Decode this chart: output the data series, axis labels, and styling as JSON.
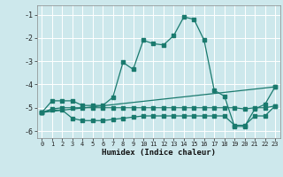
{
  "xlabel": "Humidex (Indice chaleur)",
  "bg_color": "#cde8ec",
  "grid_color": "#ffffff",
  "line_color": "#1a7a6e",
  "xlim": [
    -0.5,
    23.5
  ],
  "ylim": [
    -6.3,
    -0.6
  ],
  "xticks": [
    0,
    1,
    2,
    3,
    4,
    5,
    6,
    7,
    8,
    9,
    10,
    11,
    12,
    13,
    14,
    15,
    16,
    17,
    18,
    19,
    20,
    21,
    22,
    23
  ],
  "yticks": [
    -6,
    -5,
    -4,
    -3,
    -2,
    -1
  ],
  "line1_x": [
    0,
    1,
    2,
    3,
    4,
    5,
    6,
    7,
    8,
    9,
    10,
    11,
    12,
    13,
    14,
    15,
    16,
    17,
    18,
    19,
    20,
    21,
    22,
    23
  ],
  "line1_y": [
    -5.2,
    -4.7,
    -4.7,
    -4.7,
    -4.9,
    -4.9,
    -4.9,
    -4.55,
    -3.05,
    -3.35,
    -2.1,
    -2.25,
    -2.3,
    -1.9,
    -1.1,
    -1.2,
    -2.1,
    -4.25,
    -4.5,
    -5.8,
    -5.8,
    -5.05,
    -4.85,
    -4.1
  ],
  "line2_x": [
    0,
    23
  ],
  "line2_y": [
    -5.2,
    -4.1
  ],
  "line3_x": [
    0,
    1,
    2,
    3,
    4,
    5,
    6,
    7,
    8,
    9,
    10,
    11,
    12,
    13,
    14,
    15,
    16,
    17,
    18,
    19,
    20,
    21,
    22,
    23
  ],
  "line3_y": [
    -5.2,
    -5.05,
    -5.0,
    -5.0,
    -5.0,
    -5.0,
    -5.0,
    -5.0,
    -5.0,
    -5.0,
    -5.0,
    -5.0,
    -5.0,
    -5.0,
    -5.0,
    -5.0,
    -5.0,
    -5.0,
    -5.0,
    -5.0,
    -5.05,
    -5.0,
    -5.0,
    -4.92
  ],
  "line4_x": [
    0,
    1,
    2,
    3,
    4,
    5,
    6,
    7,
    8,
    9,
    10,
    11,
    12,
    13,
    14,
    15,
    16,
    17,
    18,
    19,
    20,
    21,
    22,
    23
  ],
  "line4_y": [
    -5.2,
    -5.1,
    -5.1,
    -5.45,
    -5.55,
    -5.55,
    -5.55,
    -5.5,
    -5.45,
    -5.4,
    -5.35,
    -5.35,
    -5.35,
    -5.35,
    -5.35,
    -5.35,
    -5.35,
    -5.35,
    -5.35,
    -5.75,
    -5.75,
    -5.35,
    -5.35,
    -4.92
  ]
}
